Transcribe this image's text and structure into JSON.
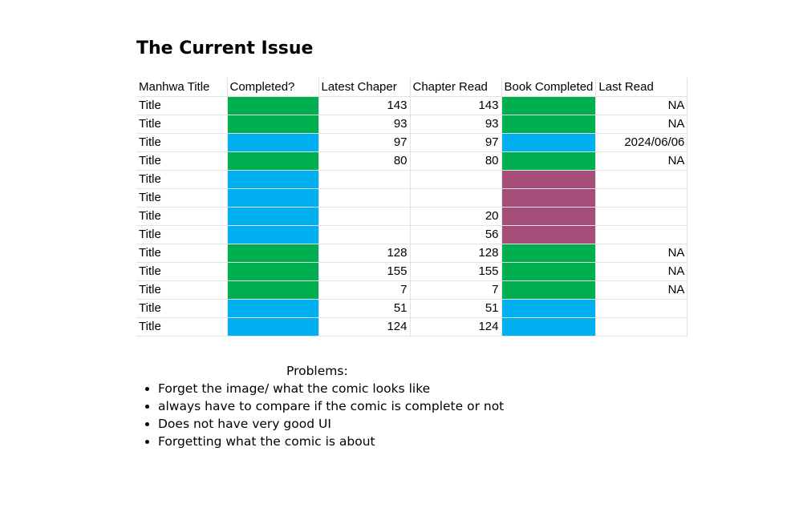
{
  "heading": "The Current Issue",
  "colors": {
    "green": "#00b050",
    "blue": "#00b0f0",
    "plum": "#a64d79"
  },
  "table": {
    "columns": [
      "Manhwa Title",
      "Completed?",
      "Latest Chaper",
      "Chapter Read",
      "Book Completed",
      "Last Read"
    ],
    "rows": [
      {
        "title": "Title",
        "completed": "green",
        "latest": "143",
        "read": "143",
        "book": "green",
        "last": "NA"
      },
      {
        "title": "Title",
        "completed": "green",
        "latest": "93",
        "read": "93",
        "book": "green",
        "last": "NA"
      },
      {
        "title": "Title",
        "completed": "blue",
        "latest": "97",
        "read": "97",
        "book": "blue",
        "last": "2024/06/06"
      },
      {
        "title": "Title",
        "completed": "green",
        "latest": "80",
        "read": "80",
        "book": "green",
        "last": "NA"
      },
      {
        "title": "Title",
        "completed": "blue",
        "latest": "",
        "read": "",
        "book": "plum",
        "last": ""
      },
      {
        "title": "Title",
        "completed": "blue",
        "latest": "",
        "read": "",
        "book": "plum",
        "last": ""
      },
      {
        "title": "Title",
        "completed": "blue",
        "latest": "",
        "read": "20",
        "book": "plum",
        "last": ""
      },
      {
        "title": "Title",
        "completed": "blue",
        "latest": "",
        "read": "56",
        "book": "plum",
        "last": ""
      },
      {
        "title": "Title",
        "completed": "green",
        "latest": "128",
        "read": "128",
        "book": "green",
        "last": "NA"
      },
      {
        "title": "Title",
        "completed": "green",
        "latest": "155",
        "read": "155",
        "book": "green",
        "last": "NA"
      },
      {
        "title": "Title",
        "completed": "green",
        "latest": "7",
        "read": "7",
        "book": "green",
        "last": "NA"
      },
      {
        "title": "Title",
        "completed": "blue",
        "latest": "51",
        "read": "51",
        "book": "blue",
        "last": ""
      },
      {
        "title": "Title",
        "completed": "blue",
        "latest": "124",
        "read": "124",
        "book": "blue",
        "last": ""
      }
    ]
  },
  "problems": {
    "title": "Problems:",
    "items": [
      "Forget the image/ what the comic looks like",
      "always have to compare if the comic is complete or not",
      "Does not have very good UI",
      "Forgetting what the comic is about"
    ]
  }
}
